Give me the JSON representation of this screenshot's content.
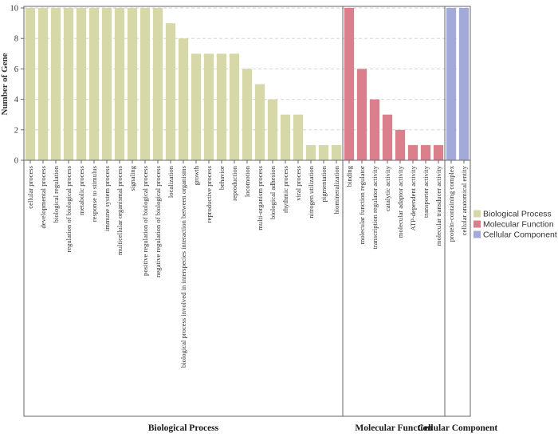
{
  "chart_data": {
    "type": "bar",
    "ylabel": "Number of Gene",
    "ylim": [
      0,
      10
    ],
    "yticks": [
      0,
      2,
      4,
      6,
      8,
      10
    ],
    "grid": "horizontal dashed",
    "legend_position": "right",
    "groups": [
      {
        "name": "Biological Process",
        "color": "#d7d8a7",
        "categories": [
          "cellular process",
          "developmental process",
          "biological regulation",
          "regulation of biological process",
          "metabolic process",
          "response to stimulus",
          "immune system process",
          "multicellular organismal process",
          "signaling",
          "positive regulation of biological process",
          "negative regulation of biological process",
          "localization",
          "biological process involved in interspecies interaction between organisms",
          "growth",
          "reproductive process",
          "behavior",
          "reproduction",
          "locomotion",
          "multi-organism process",
          "biological adhesion",
          "rhythmic process",
          "viral process",
          "nitrogen utilization",
          "pigmentation",
          "biomineralization"
        ],
        "values": [
          10,
          10,
          10,
          10,
          10,
          10,
          10,
          10,
          10,
          10,
          10,
          9,
          8,
          7,
          7,
          7,
          7,
          6,
          5,
          4,
          3,
          3,
          1,
          1,
          1
        ]
      },
      {
        "name": "Molecular Function",
        "color": "#dc7f8c",
        "categories": [
          "binding",
          "molecular function regulator",
          "transcription regulator activity",
          "catalytic activity",
          "molecular adaptor activity",
          "ATP-dependent activity",
          "transporter activity",
          "molecular transducer activity"
        ],
        "values": [
          10,
          6,
          4,
          3,
          2,
          1,
          1,
          1
        ]
      },
      {
        "name": "Cellular Component",
        "color": "#a3aad9",
        "categories": [
          "protein-containing complex",
          "cellular anatomical entity"
        ],
        "values": [
          10,
          10
        ]
      }
    ]
  }
}
